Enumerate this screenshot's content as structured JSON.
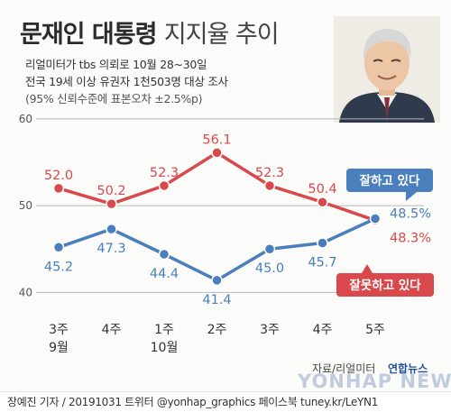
{
  "title": {
    "main": "문재인 대통령",
    "sub": "지지율 추이"
  },
  "info": [
    "리얼미터가 tbs 의뢰로 10월 28~30일",
    "전국 19세 이상 유권자 1천503명 대상 조사",
    "(95% 신뢰수준에 표본오차 ±2.5%p)"
  ],
  "source": "자료/리얼미터",
  "brand": "연합뉴스",
  "watermark": "YONHAP NEWS",
  "footer": "장예진 기자 / 20191031  트위터 @yonhap_graphics  페이스북 tuney.kr/LeYN1",
  "colors": {
    "approve": "#4a7fbd",
    "disapprove": "#d9484b",
    "grid": "#b8b8b8"
  },
  "chart_data": {
    "type": "line",
    "categories": [
      {
        "week": "3주",
        "month": "9월"
      },
      {
        "week": "4주",
        "month": ""
      },
      {
        "week": "1주",
        "month": "10월"
      },
      {
        "week": "2주",
        "month": ""
      },
      {
        "week": "3주",
        "month": ""
      },
      {
        "week": "4주",
        "month": ""
      },
      {
        "week": "5주",
        "month": ""
      }
    ],
    "yticks": [
      40,
      50,
      60
    ],
    "ylim": [
      39,
      60.5
    ],
    "grid": true,
    "series": [
      {
        "key": "disapprove",
        "name": "잘못하고 있다",
        "values": [
          52.0,
          50.2,
          52.3,
          56.1,
          52.3,
          50.4,
          48.3
        ],
        "labels": [
          "52.0",
          "50.2",
          "52.3",
          "56.1",
          "52.3",
          "50.4",
          "48.3%"
        ]
      },
      {
        "key": "approve",
        "name": "잘하고 있다",
        "values": [
          45.2,
          47.3,
          44.4,
          41.4,
          45.0,
          45.7,
          48.5
        ],
        "labels": [
          "45.2",
          "47.3",
          "44.4",
          "41.4",
          "45.0",
          "45.7",
          "48.5%"
        ]
      }
    ]
  }
}
